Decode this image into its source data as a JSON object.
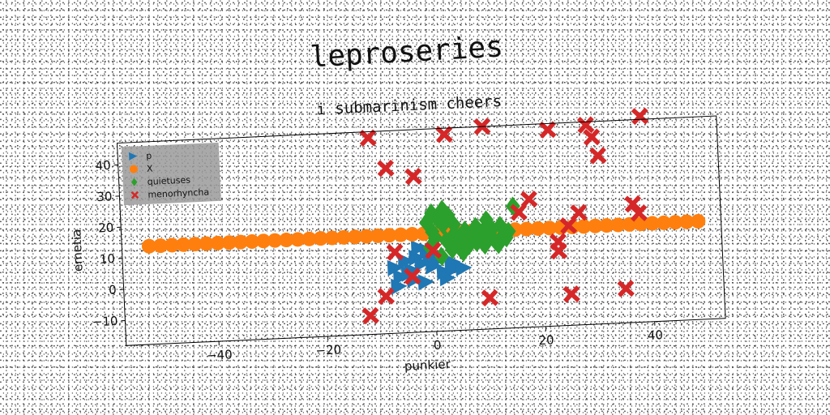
{
  "chart_data": {
    "type": "scatter",
    "title": "leproseries",
    "subtitle": "i submarinism cheers",
    "xlabel": "punkier",
    "ylabel": "emetia",
    "xlim": [
      -57,
      53
    ],
    "ylim": [
      -18,
      47
    ],
    "xticks": [
      -40,
      -20,
      0,
      20,
      40
    ],
    "yticks": [
      -10,
      0,
      10,
      20,
      30,
      40
    ],
    "xtick_labels": [
      "−40",
      "−20",
      "0",
      "20",
      "40"
    ],
    "ytick_labels": [
      "−10",
      "0",
      "10",
      "20",
      "30",
      "40"
    ],
    "grid": false,
    "legend_position": "top-left",
    "series": [
      {
        "name": "p",
        "marker": "triangle-right",
        "color": "#1f77b4",
        "x": [
          -7,
          -5,
          -3,
          -1,
          1,
          -6,
          -4,
          -2,
          0,
          2,
          4,
          -6.5,
          -3.5,
          -0.5,
          2.5,
          5.5,
          -2.5,
          0.5,
          3.5,
          -4.5,
          -1.5
        ],
        "y": [
          3,
          5,
          6,
          8,
          5,
          0,
          2,
          4,
          3,
          1,
          2,
          -3,
          -1,
          7,
          -1,
          2,
          9,
          5,
          4,
          1,
          -2
        ]
      },
      {
        "name": "X",
        "marker": "circle",
        "color": "#ff7f0e",
        "x": [
          -52.0,
          -49.9,
          -47.8,
          -45.7,
          -43.6,
          -41.5,
          -39.4,
          -37.3,
          -35.2,
          -33.1,
          -31.0,
          -28.9,
          -26.8,
          -24.7,
          -22.6,
          -20.5,
          -18.4,
          -16.3,
          -14.2,
          -12.1,
          -10.0,
          -7.9,
          -5.8,
          -3.7,
          -1.6,
          0.5,
          2.6,
          4.7,
          6.8,
          8.9,
          11.0,
          13.1,
          15.2,
          17.3,
          19.4,
          21.5,
          23.6,
          25.7,
          27.8,
          29.9,
          32.0,
          34.1,
          36.2,
          38.3,
          40.4,
          42.5,
          44.6,
          46.7,
          48.8
        ],
        "y": [
          13.5,
          13.5,
          13.5,
          13.5,
          13.5,
          13.5,
          13.5,
          13.5,
          13.5,
          13.5,
          13.5,
          13.5,
          13.5,
          13.5,
          13.5,
          13.5,
          13.5,
          13.5,
          13.5,
          13.5,
          13.5,
          13.5,
          13.5,
          13.5,
          13.5,
          13.5,
          13.5,
          13.5,
          13.5,
          13.5,
          13.5,
          13.5,
          13.5,
          13.5,
          13.5,
          13.5,
          13.5,
          13.5,
          13.5,
          13.5,
          13.5,
          13.5,
          13.5,
          13.5,
          13.5,
          13.5,
          13.5,
          13.5,
          13.5
        ]
      },
      {
        "name": "quietuses",
        "marker": "diamond",
        "color": "#2ca02c",
        "x": [
          -1,
          0,
          1,
          2,
          3,
          4,
          5,
          6,
          7,
          8,
          9,
          10,
          11,
          12,
          13,
          14,
          15,
          -0.5,
          0.5,
          1.5,
          2.5,
          3.5,
          4.5,
          5.5,
          6.5,
          7.5,
          8.5,
          9.5,
          10.5,
          11.5,
          12.5,
          13.5,
          0,
          2,
          4,
          6,
          8,
          10
        ],
        "y": [
          17,
          20,
          18,
          21,
          19,
          16,
          12,
          14,
          10,
          15,
          12,
          17,
          14,
          9,
          12,
          13,
          21,
          9,
          12,
          6,
          11,
          8,
          10,
          7,
          9,
          13,
          11,
          9,
          12,
          10,
          15,
          11,
          14,
          16,
          13,
          12,
          10,
          15
        ]
      },
      {
        "name": "menorhyncha",
        "marker": "x-filled",
        "color": "#d62728",
        "x": [
          -12,
          -11,
          -9,
          -8,
          -7,
          -4,
          -3,
          0,
          3,
          10,
          10,
          16,
          18,
          22,
          23,
          23,
          25,
          25,
          27,
          29,
          30,
          31,
          35,
          37,
          38,
          39
        ],
        "y": [
          -12,
          45,
          -6,
          35,
          8,
          0,
          32,
          8,
          45,
          47,
          -8,
          19,
          23,
          45,
          9,
          6,
          14,
          -8,
          18,
          46,
          42,
          36,
          -7,
          20,
          17,
          48
        ]
      }
    ]
  }
}
